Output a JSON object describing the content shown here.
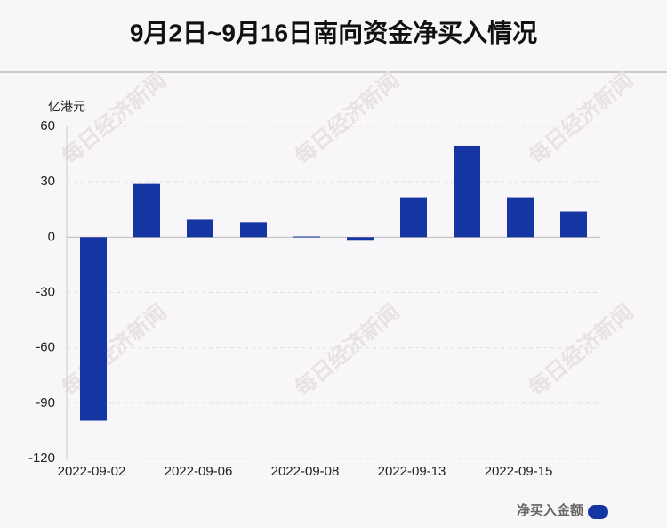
{
  "chart_data": {
    "type": "bar",
    "title": "9月2日~9月16日南向资金净买入情况",
    "y_label": "亿港元",
    "watermark": "每日经济新闻",
    "categories": [
      "2022-09-02",
      null,
      "2022-09-06",
      null,
      "2022-09-08",
      null,
      "2022-09-13",
      null,
      "2022-09-15",
      null
    ],
    "series": [
      {
        "name": "净买入金额",
        "color": "#1535a2",
        "values": [
          -99.5,
          28.8,
          9.6,
          8.2,
          0.4,
          -1.9,
          21.6,
          49.4,
          21.6,
          13.9
        ]
      }
    ],
    "ylim": [
      -120,
      60
    ],
    "yticks": [
      -120,
      -90,
      -60,
      -30,
      0,
      30,
      60
    ],
    "grid": true
  }
}
